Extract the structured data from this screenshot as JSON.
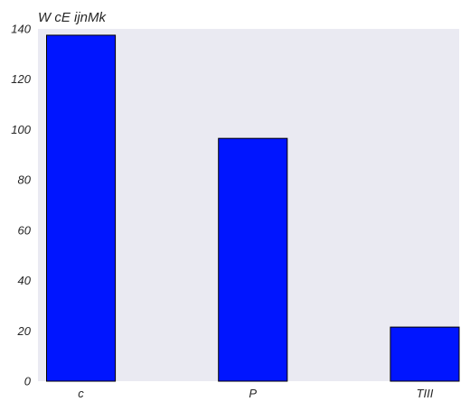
{
  "chart_data": {
    "type": "bar",
    "title": "W cE ijnMk",
    "xlabel": "",
    "ylabel": "",
    "categories": [
      "c",
      "P",
      "TIII"
    ],
    "values": [
      137.5,
      96.5,
      21.5
    ],
    "ylim": [
      0,
      140
    ],
    "yticks": [
      0,
      20,
      40,
      60,
      80,
      100,
      120,
      140
    ],
    "ytick_labels": [
      "0",
      "20",
      "40",
      "60",
      "80",
      "100",
      "120",
      "140"
    ],
    "grid": false,
    "legend": "none"
  },
  "colors": {
    "bar_fill": "#0015ff",
    "bar_edge": "#000000",
    "plot_background": "#eaeaf2",
    "text": "#262626"
  }
}
